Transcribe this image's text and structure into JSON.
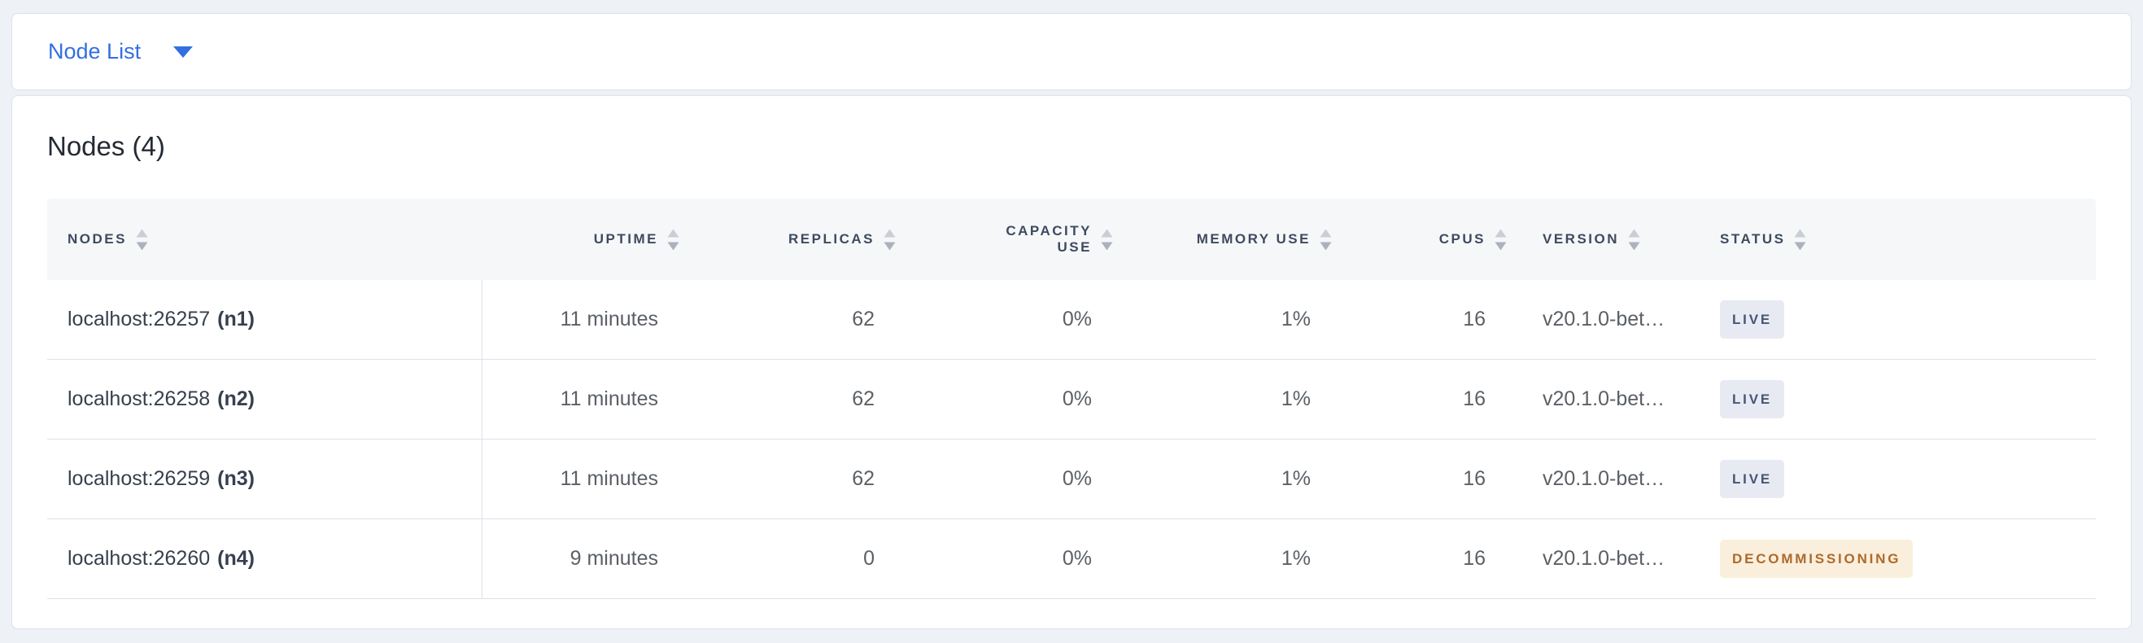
{
  "view_selector": {
    "label": "Node List"
  },
  "summary": {
    "title": "Nodes (4)"
  },
  "colors": {
    "accent_blue": "#336fe2",
    "header_text": "#3e4a5f",
    "live_badge_bg": "#e7eaf2",
    "live_badge_text": "#475672",
    "decommissioning_badge_bg": "#faefdc",
    "decommissioning_badge_text": "#ad6a2d"
  },
  "table": {
    "columns": [
      {
        "key": "node",
        "label": "Nodes"
      },
      {
        "key": "uptime",
        "label": "Uptime"
      },
      {
        "key": "replicas",
        "label": "Replicas"
      },
      {
        "key": "capacity_use",
        "label": "Capacity Use"
      },
      {
        "key": "memory_use",
        "label": "Memory Use"
      },
      {
        "key": "cpus",
        "label": "CPUs"
      },
      {
        "key": "version",
        "label": "Version"
      },
      {
        "key": "status",
        "label": "Status"
      }
    ],
    "rows": [
      {
        "address": "localhost:26257",
        "id": "(n1)",
        "uptime": "11 minutes",
        "replicas": "62",
        "capacity_use": "0%",
        "memory_use": "1%",
        "cpus": "16",
        "version": "v20.1.0-bet…",
        "status": "LIVE",
        "status_type": "live"
      },
      {
        "address": "localhost:26258",
        "id": "(n2)",
        "uptime": "11 minutes",
        "replicas": "62",
        "capacity_use": "0%",
        "memory_use": "1%",
        "cpus": "16",
        "version": "v20.1.0-bet…",
        "status": "LIVE",
        "status_type": "live"
      },
      {
        "address": "localhost:26259",
        "id": "(n3)",
        "uptime": "11 minutes",
        "replicas": "62",
        "capacity_use": "0%",
        "memory_use": "1%",
        "cpus": "16",
        "version": "v20.1.0-bet…",
        "status": "LIVE",
        "status_type": "live"
      },
      {
        "address": "localhost:26260",
        "id": "(n4)",
        "uptime": "9 minutes",
        "replicas": "0",
        "capacity_use": "0%",
        "memory_use": "1%",
        "cpus": "16",
        "version": "v20.1.0-bet…",
        "status": "DECOMMISSIONING",
        "status_type": "decommissioning"
      }
    ]
  }
}
